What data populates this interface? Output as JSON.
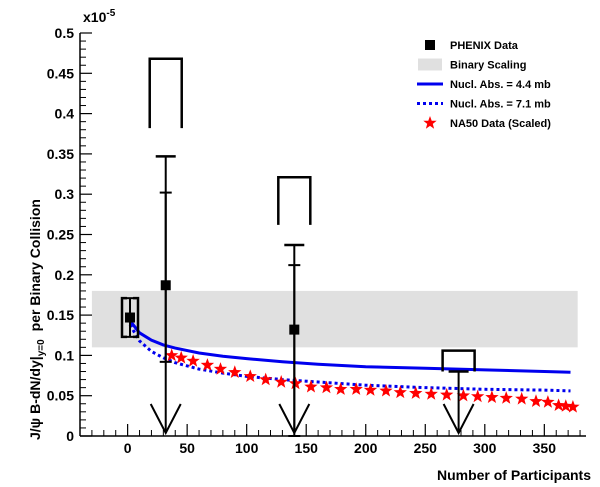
{
  "chart_data": {
    "type": "scatter",
    "xlabel": "Number of Participants",
    "ylabel_main": "J/ψ   B-dN/dy|",
    "ylabel_sub": "y=0",
    "ylabel_tail": "per Binary Collision",
    "y_exponent_label": "x10",
    "y_exponent_power": "-5",
    "xlim": [
      -40,
      385
    ],
    "ylim": [
      0,
      0.5
    ],
    "x_ticks": [
      "0",
      "50",
      "100",
      "150",
      "200",
      "250",
      "300",
      "350"
    ],
    "y_ticks": [
      "0",
      "0.05",
      "0.1",
      "0.15",
      "0.2",
      "0.25",
      "0.3",
      "0.35",
      "0.4",
      "0.45",
      "0.5"
    ],
    "legend_position": "top-right",
    "binary_scaling_band": {
      "x": [
        -30,
        378
      ],
      "y": [
        0.11,
        0.18
      ],
      "color": "#e0e0e0"
    },
    "series": [
      {
        "name": "PHENIX Data",
        "marker": "square",
        "color": "#000000",
        "points": [
          {
            "x": 2,
            "y": 0.147,
            "stat_low": 0.123,
            "stat_high": 0.171,
            "sys_low": 0.123,
            "sys_high": 0.171
          },
          {
            "x": 32,
            "y": 0.187,
            "stat_low": 0.092,
            "stat_high": 0.302,
            "upper_limit_from": 0.347,
            "sys_bracket": [
              0.382,
              0.468
            ]
          },
          {
            "x": 140,
            "y": 0.132,
            "stat_low": 0.0,
            "stat_high": 0.212,
            "upper_limit_from": 0.237,
            "sys_bracket": [
              0.262,
              0.321
            ]
          },
          {
            "x": 278,
            "y": null,
            "upper_limit_from": 0.08,
            "sys_bracket": [
              0.08,
              0.106
            ]
          }
        ]
      },
      {
        "name": "Nucl. Abs. = 4.4 mb",
        "color": "#0000ee",
        "style": "solid",
        "x": [
          2,
          10,
          20,
          30,
          40,
          60,
          80,
          100,
          130,
          160,
          200,
          250,
          300,
          350,
          372
        ],
        "y": [
          0.143,
          0.128,
          0.119,
          0.113,
          0.109,
          0.103,
          0.099,
          0.096,
          0.092,
          0.089,
          0.086,
          0.084,
          0.082,
          0.08,
          0.079
        ]
      },
      {
        "name": "Nucl. Abs. = 7.1 mb",
        "color": "#0000ee",
        "style": "dotted",
        "x": [
          2,
          10,
          20,
          30,
          40,
          60,
          80,
          100,
          130,
          160,
          200,
          250,
          300,
          350,
          372
        ],
        "y": [
          0.138,
          0.118,
          0.105,
          0.097,
          0.091,
          0.083,
          0.078,
          0.074,
          0.07,
          0.067,
          0.063,
          0.06,
          0.058,
          0.057,
          0.056
        ]
      },
      {
        "name": "NA50 Data (Scaled)",
        "marker": "star",
        "color": "#ff0000",
        "x": [
          37,
          45,
          55,
          67,
          78,
          90,
          103,
          116,
          129,
          141,
          154,
          167,
          179,
          192,
          204,
          217,
          229,
          242,
          255,
          268,
          282,
          294,
          306,
          318,
          331,
          343,
          353,
          362,
          368,
          374
        ],
        "y": [
          0.1,
          0.097,
          0.093,
          0.088,
          0.083,
          0.079,
          0.074,
          0.07,
          0.067,
          0.065,
          0.061,
          0.06,
          0.058,
          0.058,
          0.057,
          0.056,
          0.054,
          0.053,
          0.052,
          0.051,
          0.05,
          0.049,
          0.048,
          0.047,
          0.046,
          0.043,
          0.042,
          0.038,
          0.037,
          0.036
        ]
      }
    ],
    "legend": [
      {
        "label": "PHENIX Data",
        "symbol": "square"
      },
      {
        "label": "Binary Scaling",
        "symbol": "band"
      },
      {
        "label": "Nucl. Abs. = 4.4 mb",
        "symbol": "solid-line"
      },
      {
        "label": "Nucl. Abs. = 7.1 mb",
        "symbol": "dotted-line"
      },
      {
        "label": "NA50 Data (Scaled)",
        "symbol": "star"
      }
    ]
  }
}
